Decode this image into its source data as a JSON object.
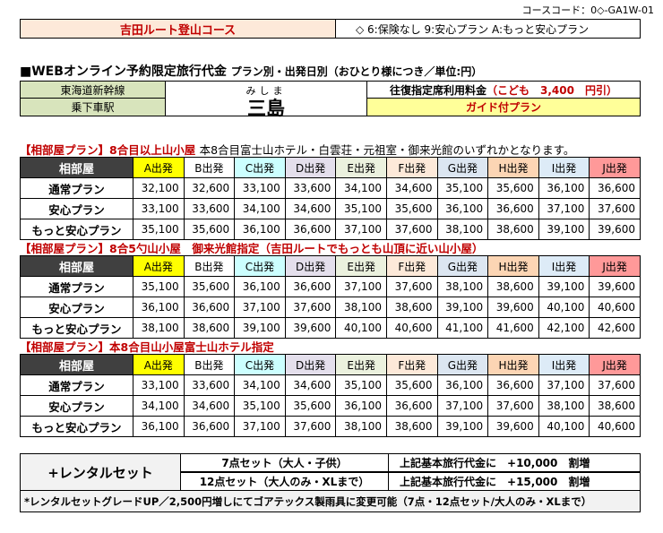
{
  "header": {
    "course_code": "コースコード：0◇-GA1W-01",
    "course_title": "吉田ルート登山コース",
    "plan_legend": "◇ 6:保険なし 9:安心プラン A:もっと安心プラン"
  },
  "price_heading": {
    "main": "■WEBオンライン予約限定旅行代金",
    "sub": "プラン別・出発日別（おひとり様につき／単位:円）"
  },
  "route": {
    "line": "東海道新幹線",
    "boarding": "乗下車駅",
    "station_ruby": "みしま",
    "station": "三島",
    "fare_label": "往復指定席利用料金",
    "fare_kids": "（こども　3,400　円引）",
    "guide": "ガイド付プラン"
  },
  "departures": [
    {
      "label": "A出発",
      "color": "#ffff00"
    },
    {
      "label": "B出発",
      "color": "#ffffff"
    },
    {
      "label": "C出発",
      "color": "#ccffff"
    },
    {
      "label": "D出発",
      "color": "#e4dfec"
    },
    {
      "label": "E出発",
      "color": "#ebf1de"
    },
    {
      "label": "F出発",
      "color": "#fde9d9"
    },
    {
      "label": "G出発",
      "color": "#dce6f1"
    },
    {
      "label": "H出発",
      "color": "#fcd5b4"
    },
    {
      "label": "I出発",
      "color": "#ddebf7"
    },
    {
      "label": "J出発",
      "color": "#ff9999"
    }
  ],
  "sections": [
    {
      "title": "【相部屋プラン】8合目以上山小屋",
      "note": "本8合目富士山ホテル・白雲荘・元祖室・御来光館のいずれかとなります。",
      "header_label": "相部屋",
      "rows": [
        {
          "plan": "通常プラン",
          "prices": [
            "32,100",
            "32,600",
            "33,100",
            "33,600",
            "34,100",
            "34,600",
            "35,100",
            "35,600",
            "36,100",
            "36,600"
          ]
        },
        {
          "plan": "安心プラン",
          "prices": [
            "33,100",
            "33,600",
            "34,100",
            "34,600",
            "35,100",
            "35,600",
            "36,100",
            "36,600",
            "37,100",
            "37,600"
          ]
        },
        {
          "plan": "もっと安心プラン",
          "prices": [
            "35,100",
            "35,600",
            "36,100",
            "36,600",
            "37,100",
            "37,600",
            "38,100",
            "38,600",
            "39,100",
            "39,600"
          ]
        }
      ]
    },
    {
      "title": "【相部屋プラン】8合5勺山小屋　御来光館指定（吉田ルートでもっとも山頂に近い山小屋）",
      "note": "",
      "header_label": "相部屋",
      "rows": [
        {
          "plan": "通常プラン",
          "prices": [
            "35,100",
            "35,600",
            "36,100",
            "36,600",
            "37,100",
            "37,600",
            "38,100",
            "38,600",
            "39,100",
            "39,600"
          ]
        },
        {
          "plan": "安心プラン",
          "prices": [
            "36,100",
            "36,600",
            "37,100",
            "37,600",
            "38,100",
            "38,600",
            "39,100",
            "39,600",
            "40,100",
            "40,600"
          ]
        },
        {
          "plan": "もっと安心プラン",
          "prices": [
            "38,100",
            "38,600",
            "39,100",
            "39,600",
            "40,100",
            "40,600",
            "41,100",
            "41,600",
            "42,100",
            "42,600"
          ]
        }
      ]
    },
    {
      "title": "【相部屋プラン】本8合目山小屋富士山ホテル指定",
      "note": "",
      "header_label": "相部屋",
      "rows": [
        {
          "plan": "通常プラン",
          "prices": [
            "33,100",
            "33,600",
            "34,100",
            "34,600",
            "35,100",
            "35,600",
            "36,100",
            "36,600",
            "37,100",
            "37,600"
          ]
        },
        {
          "plan": "安心プラン",
          "prices": [
            "34,100",
            "34,600",
            "35,100",
            "35,600",
            "36,100",
            "36,600",
            "37,100",
            "37,600",
            "38,100",
            "38,600"
          ]
        },
        {
          "plan": "もっと安心プラン",
          "prices": [
            "36,100",
            "36,600",
            "37,100",
            "37,600",
            "38,100",
            "38,600",
            "39,100",
            "39,600",
            "40,100",
            "40,600"
          ]
        }
      ]
    }
  ],
  "rental": {
    "title": "+レンタルセット",
    "set7": "7点セット（大人・子供）",
    "set12": "12点セット（大人のみ・XLまで）",
    "price7_label": "上記基本旅行代金に",
    "price7": "+10,000　割増",
    "price12_label": "上記基本旅行代金に",
    "price12": "+15,000　割増",
    "note": "*レンタルセットグレードUP／2,500円増しにてゴアテックス製雨具に変更可能（7点・12点セット/大人のみ・XLまで）"
  }
}
